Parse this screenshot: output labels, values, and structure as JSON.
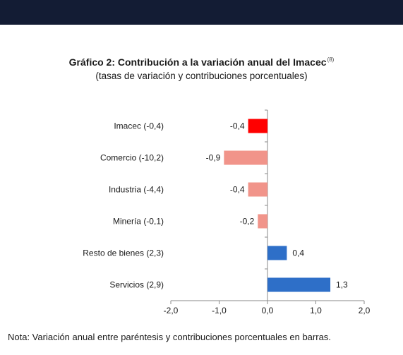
{
  "header": {
    "bar_color": "#131c34"
  },
  "chart_title": "Gráfico 2: Contribución a la variación anual del Imacec",
  "chart_title_footnote": "(8)",
  "chart_subtitle": "(tasas de variación y contribuciones porcentuales)",
  "note": "Nota: Variación anual entre paréntesis y contribuciones porcentuales en barras.",
  "chart_data": {
    "type": "bar",
    "orientation": "horizontal",
    "categories": [
      "Imacec (-0,4)",
      "Comercio (-10,2)",
      "Industria (-4,4)",
      "Minería (-0,1)",
      "Resto de bienes (2,3)",
      "Servicios (2,9)"
    ],
    "values": [
      -0.4,
      -0.9,
      -0.4,
      -0.2,
      0.4,
      1.3
    ],
    "data_labels": [
      "-0,4",
      "-0,9",
      "-0,4",
      "-0,2",
      "0,4",
      "1,3"
    ],
    "colors": [
      "#ff0000",
      "#f1948a",
      "#f1948a",
      "#f1948a",
      "#2e6fc8",
      "#2e6fc8"
    ],
    "xlim": [
      -2.0,
      2.0
    ],
    "x_ticks": [
      -2.0,
      -1.0,
      0.0,
      1.0,
      2.0
    ],
    "x_tick_labels": [
      "-2,0",
      "-1,0",
      "0,0",
      "1,0",
      "2,0"
    ],
    "grid": false,
    "legend": "none"
  }
}
